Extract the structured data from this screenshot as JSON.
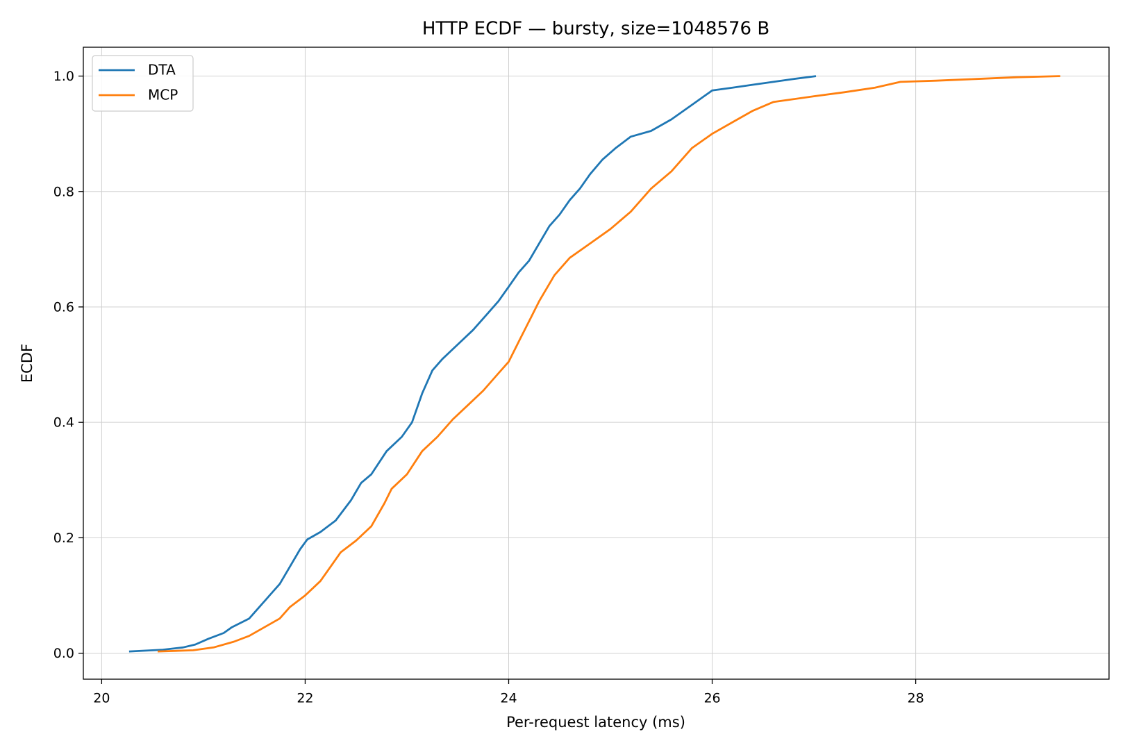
{
  "chart_data": {
    "type": "line",
    "title": "HTTP ECDF — bursty, size=1048576 B",
    "xlabel": "Per-request latency (ms)",
    "ylabel": "ECDF",
    "xlim": [
      19.82,
      29.9
    ],
    "ylim": [
      -0.045,
      1.05
    ],
    "xticks": [
      20,
      22,
      24,
      26,
      28
    ],
    "xtick_labels": [
      "20",
      "22",
      "24",
      "26",
      "28"
    ],
    "yticks": [
      0.0,
      0.2,
      0.4,
      0.6,
      0.8,
      1.0
    ],
    "ytick_labels": [
      "0.0",
      "0.2",
      "0.4",
      "0.6",
      "0.8",
      "1.0"
    ],
    "grid": true,
    "legend_position": "upper-left",
    "series": [
      {
        "name": "DTA",
        "color": "#1f77b4",
        "x": [
          20.27,
          20.6,
          20.8,
          20.92,
          21.05,
          21.2,
          21.28,
          21.45,
          21.55,
          21.65,
          21.75,
          21.85,
          21.95,
          22.02,
          22.15,
          22.3,
          22.45,
          22.55,
          22.65,
          22.8,
          22.95,
          23.05,
          23.15,
          23.25,
          23.35,
          23.5,
          23.65,
          23.8,
          23.9,
          24.0,
          24.1,
          24.2,
          24.3,
          24.4,
          24.5,
          24.6,
          24.7,
          24.8,
          24.92,
          25.05,
          25.2,
          25.4,
          25.6,
          25.8,
          26.0,
          26.2,
          26.4,
          26.6,
          26.8,
          27.02
        ],
        "y": [
          0.003,
          0.006,
          0.01,
          0.015,
          0.025,
          0.035,
          0.045,
          0.06,
          0.08,
          0.1,
          0.12,
          0.15,
          0.18,
          0.197,
          0.21,
          0.23,
          0.265,
          0.295,
          0.31,
          0.35,
          0.375,
          0.4,
          0.45,
          0.49,
          0.51,
          0.535,
          0.56,
          0.59,
          0.61,
          0.635,
          0.66,
          0.68,
          0.71,
          0.74,
          0.76,
          0.785,
          0.805,
          0.83,
          0.855,
          0.875,
          0.895,
          0.905,
          0.925,
          0.95,
          0.975,
          0.98,
          0.985,
          0.99,
          0.995,
          1.0
        ]
      },
      {
        "name": "MCP",
        "color": "#ff7f0e",
        "x": [
          20.55,
          20.9,
          21.1,
          21.3,
          21.45,
          21.6,
          21.75,
          21.85,
          22.0,
          22.15,
          22.25,
          22.35,
          22.5,
          22.65,
          22.78,
          22.85,
          23.0,
          23.15,
          23.3,
          23.45,
          23.6,
          23.75,
          23.9,
          24.0,
          24.1,
          24.2,
          24.3,
          24.45,
          24.6,
          24.8,
          25.0,
          25.2,
          25.4,
          25.6,
          25.8,
          26.0,
          26.2,
          26.4,
          26.6,
          26.8,
          27.0,
          27.3,
          27.6,
          27.85,
          28.2,
          28.6,
          29.0,
          29.42
        ],
        "y": [
          0.003,
          0.005,
          0.01,
          0.02,
          0.03,
          0.045,
          0.06,
          0.08,
          0.1,
          0.125,
          0.15,
          0.175,
          0.195,
          0.22,
          0.26,
          0.285,
          0.31,
          0.35,
          0.375,
          0.405,
          0.43,
          0.455,
          0.485,
          0.505,
          0.54,
          0.575,
          0.61,
          0.655,
          0.685,
          0.71,
          0.735,
          0.765,
          0.805,
          0.835,
          0.875,
          0.9,
          0.92,
          0.94,
          0.955,
          0.96,
          0.965,
          0.972,
          0.98,
          0.99,
          0.992,
          0.995,
          0.998,
          1.0
        ]
      }
    ]
  }
}
